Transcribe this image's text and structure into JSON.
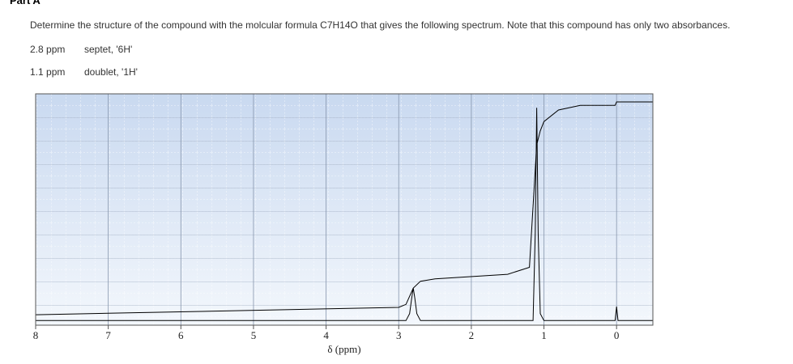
{
  "header": {
    "title": "Part A"
  },
  "question": "Determine the structure of the compound with the molcular formula C7H14O that gives the following spectrum. Note that this compound has only two absorbances.",
  "peaks": [
    [
      "2.8 ppm",
      "septet, '6H'"
    ],
    [
      "1.1 ppm",
      "doublet, '1H'"
    ]
  ],
  "chart_data": {
    "type": "line",
    "xlabel": "δ (ppm)",
    "xlim": [
      8,
      -0.5
    ],
    "xticks": [
      8,
      7,
      6,
      5,
      4,
      3,
      2,
      1,
      0
    ],
    "ylim": [
      0,
      100
    ],
    "grid": true,
    "series": [
      {
        "color": "#000000",
        "x": [
          8,
          2.9,
          2.85,
          2.82,
          2.8,
          2.78,
          2.75,
          2.7,
          1.15,
          1.12,
          1.1,
          1.08,
          1.05,
          1.0,
          0.02,
          0.0,
          -0.02,
          -0.5
        ],
        "values": [
          2,
          2,
          5,
          12,
          16,
          12,
          5,
          2,
          2,
          40,
          94,
          40,
          5,
          2,
          2,
          8,
          2,
          2
        ]
      },
      {
        "color": "#000000",
        "x": [
          8,
          3.0,
          2.9,
          2.8,
          2.7,
          2.5,
          1.5,
          1.2,
          1.1,
          1.05,
          1.0,
          0.8,
          0.5,
          0.02,
          0.0,
          -0.5
        ],
        "values": [
          4.5,
          7.7,
          9,
          16,
          19,
          20,
          22,
          25,
          78,
          84,
          88,
          93,
          95,
          95,
          96.5,
          96.5
        ]
      }
    ]
  }
}
